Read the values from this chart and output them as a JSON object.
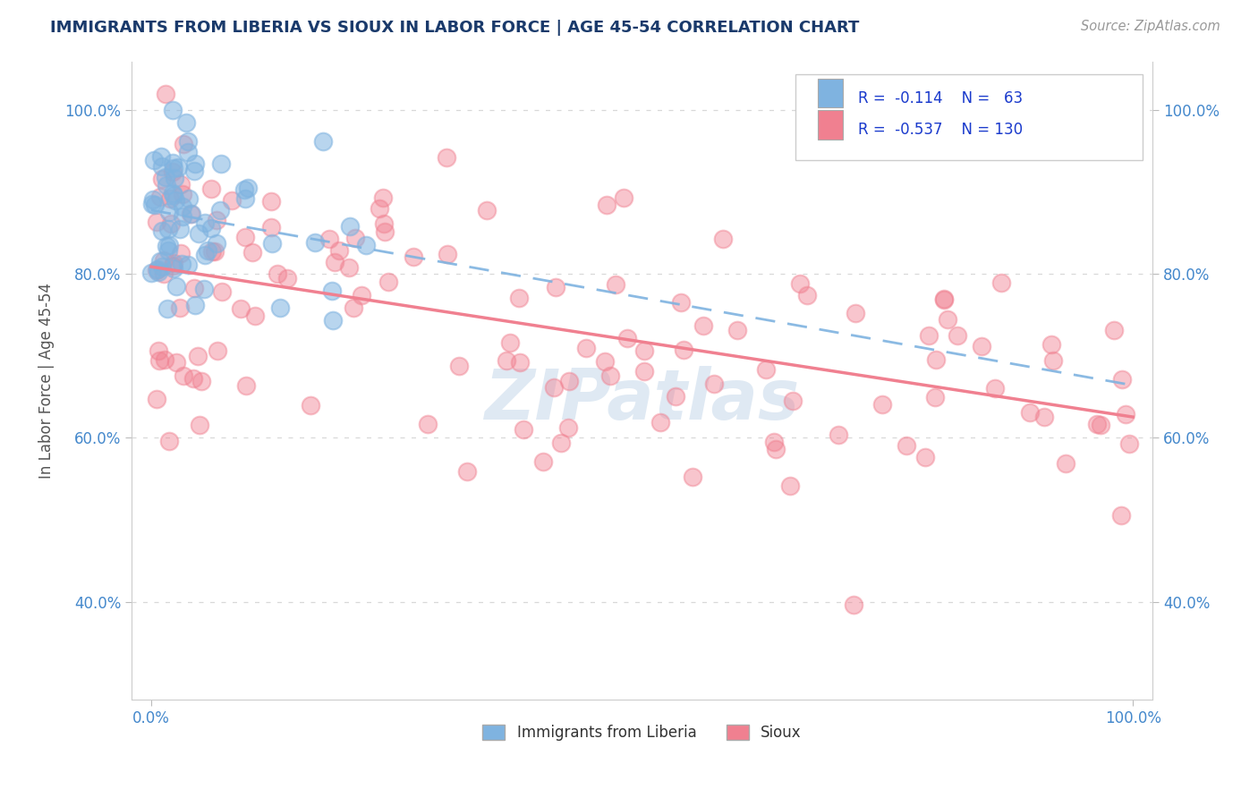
{
  "title": "IMMIGRANTS FROM LIBERIA VS SIOUX IN LABOR FORCE | AGE 45-54 CORRELATION CHART",
  "source_text": "Source: ZipAtlas.com",
  "ylabel": "In Labor Force | Age 45-54",
  "xlim": [
    -0.02,
    1.02
  ],
  "ylim": [
    0.28,
    1.06
  ],
  "xtick_labels": [
    "0.0%",
    "100.0%"
  ],
  "xtick_positions": [
    0.0,
    1.0
  ],
  "ytick_labels": [
    "40.0%",
    "60.0%",
    "80.0%",
    "100.0%"
  ],
  "ytick_positions": [
    0.4,
    0.6,
    0.8,
    1.0
  ],
  "liberia_color": "#7fb3e0",
  "liberia_edge_color": "#5590c8",
  "sioux_color": "#f08090",
  "sioux_edge_color": "#e05070",
  "liberia_R": -0.114,
  "liberia_N": 63,
  "sioux_R": -0.537,
  "sioux_N": 130,
  "watermark": "ZIPatlas",
  "background_color": "#ffffff",
  "grid_color": "#d8d8d8",
  "title_color": "#1a3a6b",
  "axis_label_color": "#555555",
  "tick_color": "#4488cc",
  "legend_R_color": "#1a3acc",
  "trend_liberia_x0": 0.0,
  "trend_liberia_x1": 1.0,
  "trend_liberia_y0": 0.875,
  "trend_liberia_y1": 0.72,
  "trend_sioux_x0": 0.0,
  "trend_sioux_x1": 1.0,
  "trend_sioux_y0": 0.895,
  "trend_sioux_y1": 0.535
}
